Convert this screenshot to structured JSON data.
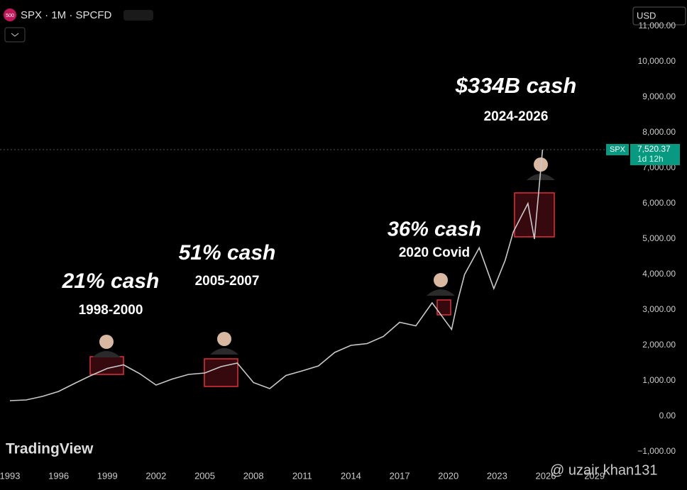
{
  "chart_data": {
    "type": "line",
    "header": {
      "badge": "500",
      "symbol": "SPX · 1M · SPCFD",
      "currency": "USD"
    },
    "brand": "TradingView",
    "watermark": "@ uzair khan131",
    "series": [
      {
        "name": "SPX",
        "color": "#c9c9c9",
        "x": [
          1993,
          1994,
          1995,
          1996,
          1997,
          1998,
          1999,
          2000,
          2001,
          2002,
          2003,
          2004,
          2005,
          2006,
          2007,
          2008,
          2009,
          2010,
          2011,
          2012,
          2013,
          2014,
          2015,
          2016,
          2017,
          2018,
          2019,
          2020.2,
          2020.6,
          2021,
          2021.9,
          2022.8,
          2023.5,
          2024,
          2024.9,
          2025.3,
          2025.8
        ],
        "values": [
          440,
          460,
          560,
          700,
          930,
          1150,
          1350,
          1450,
          1200,
          880,
          1050,
          1180,
          1220,
          1400,
          1500,
          950,
          780,
          1150,
          1280,
          1420,
          1800,
          2000,
          2050,
          2250,
          2650,
          2550,
          3200,
          2450,
          3300,
          4000,
          4750,
          3600,
          4400,
          5200,
          6000,
          5000,
          7520.37
        ]
      }
    ],
    "last_price": {
      "symbol": "SPX",
      "value": 7520.37,
      "label": "7,520.37",
      "countdown": "1d 12h"
    },
    "annotations": [
      {
        "title": "21% cash",
        "subtitle": "1998-2000"
      },
      {
        "title": "51% cash",
        "subtitle": "2005-2007"
      },
      {
        "title": "36% cash",
        "subtitle": "2020 Covid"
      },
      {
        "title": "$334B cash",
        "subtitle": "2024-2026"
      }
    ],
    "xlim": [
      1992.39,
      2031.2
    ],
    "xticks": [
      1993,
      1996,
      1999,
      2002,
      2005,
      2008,
      2011,
      2014,
      2017,
      2020,
      2023,
      2026,
      2029
    ],
    "ylim": [
      -1360,
      11740
    ],
    "yticks": [
      {
        "value": -1000,
        "label": "−1,000.00"
      },
      {
        "value": 0,
        "label": "0.00"
      },
      {
        "value": 1000,
        "label": "1,000.00"
      },
      {
        "value": 2000,
        "label": "2,000.00"
      },
      {
        "value": 3000,
        "label": "3,000.00"
      },
      {
        "value": 4000,
        "label": "4,000.00"
      },
      {
        "value": 5000,
        "label": "5,000.00"
      },
      {
        "value": 6000,
        "label": "6,000.00"
      },
      {
        "value": 7000,
        "label": "7,000.00"
      },
      {
        "value": 8000,
        "label": "8,000.00"
      },
      {
        "value": 9000,
        "label": "9,000.00"
      },
      {
        "value": 10000,
        "label": "10,000.00"
      },
      {
        "value": 11000,
        "label": "11,000.00"
      }
    ],
    "grid": false
  }
}
